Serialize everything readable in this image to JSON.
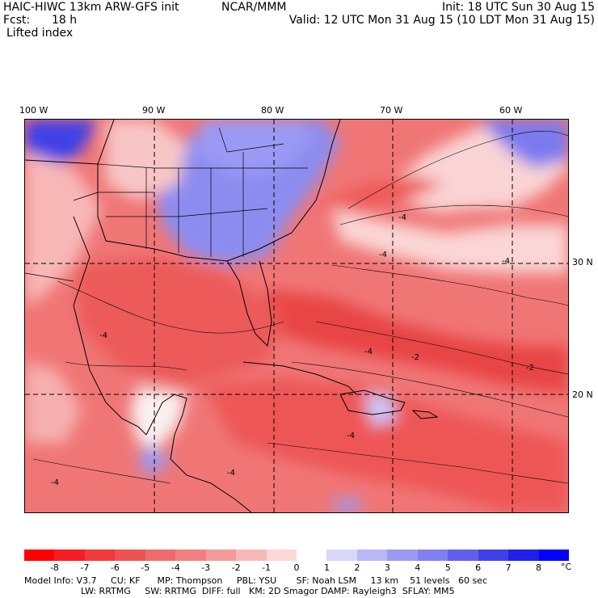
{
  "header": {
    "title_left": "HAIC-HIWC 13km ARW-GFS init",
    "title_mid": "NCAR/MMM",
    "init": "Init: 18 UTC Sun 30 Aug 15",
    "fcst_label": "Fcst:",
    "fcst_value": "18 h",
    "valid": "Valid: 12 UTC Mon 31 Aug 15 (10 LDT Mon 31 Aug 15)",
    "field": "Lifted index"
  },
  "map": {
    "lon_labels": [
      "100 W",
      "90 W",
      "80 W",
      "70 W",
      "60 W"
    ],
    "lat_labels": [
      "30 N",
      "20 N"
    ],
    "contour_labels": [
      "-4",
      "-4",
      "-2",
      "-4",
      "-4",
      "-4",
      "-4",
      "-2",
      "-4",
      "-4"
    ]
  },
  "colorbar": {
    "ticks": [
      "-8",
      "-7",
      "-6",
      "-5",
      "-4",
      "-3",
      "-2",
      "-1",
      "0",
      "1",
      "2",
      "3",
      "4",
      "5",
      "6",
      "7",
      "8"
    ],
    "unit": "°C",
    "colors": [
      "#ff0000",
      "#f51d22",
      "#f23a3a",
      "#ef5252",
      "#ef6b6b",
      "#f08080",
      "#f49a9a",
      "#f8b8b8",
      "#fcd8d8",
      "#ffffff",
      "#d8d8fc",
      "#b8b8f8",
      "#9a9af4",
      "#8080f0",
      "#6060ec",
      "#4040ea",
      "#2020ea",
      "#0000ff"
    ]
  },
  "model_info": {
    "line1": "Model Info: V3.7     CU: KF      MP: Thompson     PBL: YSU       SF: Noah LSM     13 km    51 levels   60 sec",
    "line2": "LW: RRTMG     SW: RRTMG  DIFF: full   KM: 2D Smagor DAMP: Rayleigh3  SFLAY: MM5"
  }
}
